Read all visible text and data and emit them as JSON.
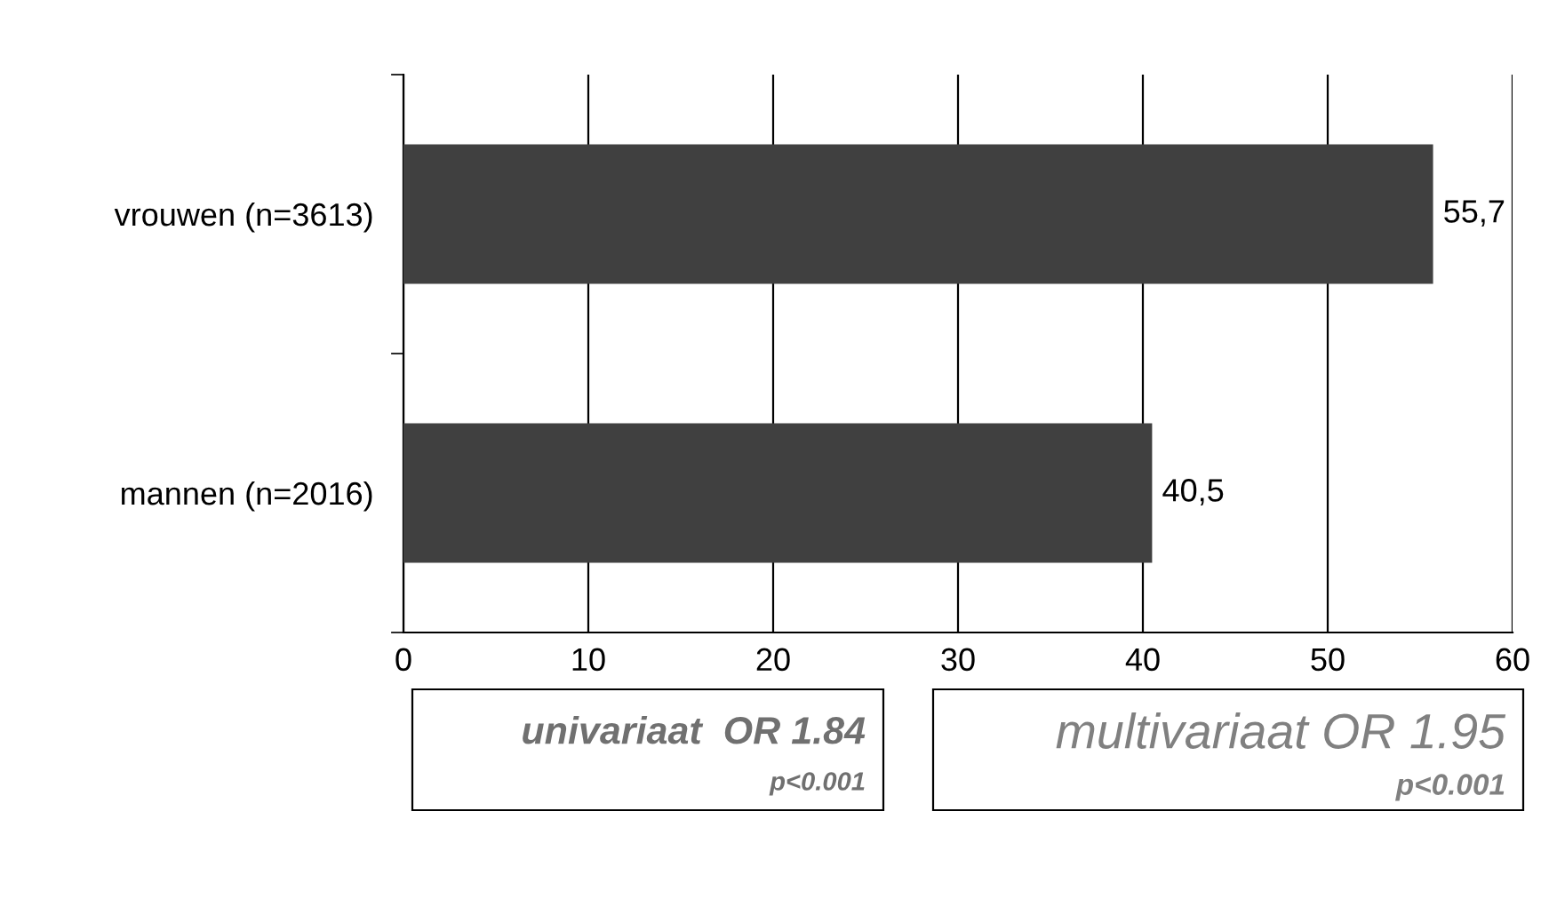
{
  "chart_data": {
    "type": "bar",
    "orientation": "horizontal",
    "categories": [
      "vrouwen (n=3613)",
      "mannen (n=2016)"
    ],
    "values": [
      55.7,
      40.5
    ],
    "value_labels": [
      "55,7",
      "40,5"
    ],
    "color": "#404040",
    "xlim": [
      0,
      60
    ],
    "xticks": [
      0,
      10,
      20,
      30,
      40,
      50,
      60
    ],
    "grid": "x",
    "legend": false,
    "annotations": [
      "univariaat  OR 1.84",
      "p<0.001",
      "multivariaat OR 1.95",
      "p<0.001"
    ]
  }
}
